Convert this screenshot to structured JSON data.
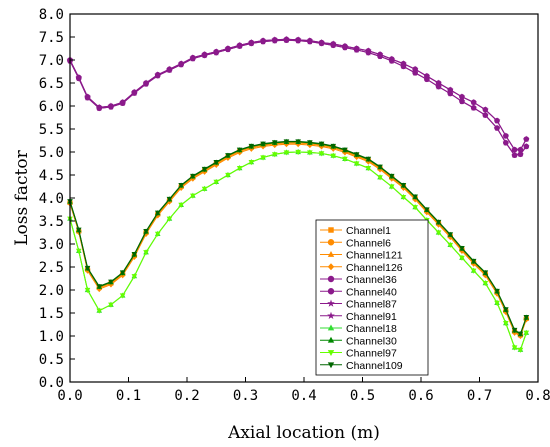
{
  "chart_data": {
    "type": "line",
    "title": "",
    "xlabel": "Axial location (m)",
    "ylabel": "Loss factor",
    "xlim": [
      0.0,
      0.8
    ],
    "ylim": [
      0.0,
      8.0
    ],
    "xticks": [
      "0.0",
      "0.1",
      "0.2",
      "0.3",
      "0.4",
      "0.5",
      "0.6",
      "0.7",
      "0.8"
    ],
    "yticks": [
      "0.0",
      "0.5",
      "1.0",
      "1.5",
      "2.0",
      "2.5",
      "3.0",
      "3.5",
      "4.0",
      "4.5",
      "5.0",
      "5.5",
      "6.0",
      "6.5",
      "7.0",
      "7.5",
      "8.0"
    ],
    "grid": false,
    "legend_position": "right-middle",
    "x": [
      0.0,
      0.015,
      0.03,
      0.05,
      0.07,
      0.09,
      0.11,
      0.13,
      0.15,
      0.17,
      0.19,
      0.21,
      0.23,
      0.25,
      0.27,
      0.29,
      0.31,
      0.33,
      0.35,
      0.37,
      0.39,
      0.41,
      0.43,
      0.45,
      0.47,
      0.49,
      0.51,
      0.53,
      0.55,
      0.57,
      0.59,
      0.61,
      0.63,
      0.65,
      0.67,
      0.69,
      0.71,
      0.73,
      0.745,
      0.76,
      0.77,
      0.78
    ],
    "series": [
      {
        "name": "Channel1",
        "color": "#FF8C00",
        "marker": "square",
        "values": [
          3.9,
          3.28,
          2.45,
          2.05,
          2.15,
          2.35,
          2.75,
          3.25,
          3.65,
          3.95,
          4.25,
          4.45,
          4.6,
          4.75,
          4.9,
          5.02,
          5.1,
          5.15,
          5.18,
          5.2,
          5.2,
          5.18,
          5.15,
          5.1,
          5.02,
          4.92,
          4.82,
          4.65,
          4.45,
          4.25,
          4.0,
          3.72,
          3.45,
          3.18,
          2.88,
          2.6,
          2.35,
          1.95,
          1.55,
          1.1,
          1.02,
          1.38
        ]
      },
      {
        "name": "Channel6",
        "color": "#FF8C00",
        "marker": "circle",
        "values": [
          3.9,
          3.28,
          2.45,
          2.05,
          2.15,
          2.35,
          2.75,
          3.25,
          3.65,
          3.95,
          4.25,
          4.45,
          4.6,
          4.75,
          4.9,
          5.02,
          5.1,
          5.15,
          5.18,
          5.2,
          5.2,
          5.18,
          5.15,
          5.1,
          5.02,
          4.92,
          4.82,
          4.65,
          4.45,
          4.25,
          4.0,
          3.72,
          3.45,
          3.18,
          2.88,
          2.6,
          2.35,
          1.95,
          1.55,
          1.1,
          1.02,
          1.38
        ]
      },
      {
        "name": "Channel121",
        "color": "#FF8C00",
        "marker": "triangle",
        "values": [
          3.9,
          3.28,
          2.45,
          2.05,
          2.15,
          2.35,
          2.75,
          3.25,
          3.65,
          3.95,
          4.25,
          4.45,
          4.6,
          4.75,
          4.9,
          5.02,
          5.1,
          5.15,
          5.18,
          5.2,
          5.2,
          5.18,
          5.15,
          5.1,
          5.02,
          4.92,
          4.82,
          4.65,
          4.45,
          4.25,
          4.0,
          3.72,
          3.45,
          3.18,
          2.88,
          2.6,
          2.35,
          1.95,
          1.55,
          1.1,
          1.02,
          1.38
        ]
      },
      {
        "name": "Channel126",
        "color": "#FF8C00",
        "marker": "diamond",
        "values": [
          3.88,
          3.26,
          2.42,
          2.02,
          2.12,
          2.32,
          2.72,
          3.22,
          3.62,
          3.92,
          4.22,
          4.42,
          4.57,
          4.72,
          4.87,
          4.99,
          5.07,
          5.12,
          5.15,
          5.17,
          5.17,
          5.15,
          5.12,
          5.07,
          4.99,
          4.89,
          4.79,
          4.62,
          4.42,
          4.22,
          3.97,
          3.69,
          3.42,
          3.15,
          2.85,
          2.57,
          2.32,
          1.92,
          1.52,
          1.07,
          1.0,
          1.36
        ]
      },
      {
        "name": "Channel36",
        "color": "#8B1A8B",
        "marker": "circle",
        "values": [
          7.0,
          6.62,
          6.2,
          5.97,
          6.0,
          6.08,
          6.3,
          6.5,
          6.68,
          6.8,
          6.92,
          7.05,
          7.12,
          7.18,
          7.25,
          7.32,
          7.38,
          7.42,
          7.44,
          7.45,
          7.44,
          7.42,
          7.38,
          7.35,
          7.3,
          7.25,
          7.2,
          7.12,
          7.02,
          6.92,
          6.8,
          6.65,
          6.5,
          6.35,
          6.2,
          6.08,
          5.92,
          5.68,
          5.35,
          5.05,
          5.05,
          5.28
        ]
      },
      {
        "name": "Channel40",
        "color": "#8B1A8B",
        "marker": "circle",
        "values": [
          6.98,
          6.6,
          6.18,
          5.95,
          5.98,
          6.06,
          6.28,
          6.48,
          6.66,
          6.78,
          6.9,
          7.03,
          7.1,
          7.16,
          7.23,
          7.3,
          7.36,
          7.4,
          7.42,
          7.43,
          7.42,
          7.4,
          7.36,
          7.32,
          7.27,
          7.22,
          7.16,
          7.08,
          6.98,
          6.86,
          6.72,
          6.58,
          6.42,
          6.27,
          6.1,
          5.96,
          5.8,
          5.52,
          5.2,
          4.93,
          4.95,
          5.12
        ]
      },
      {
        "name": "Channel87",
        "color": "#8B1A8B",
        "marker": "star",
        "values": [
          7.0,
          6.62,
          6.2,
          5.97,
          6.0,
          6.08,
          6.3,
          6.5,
          6.68,
          6.8,
          6.92,
          7.05,
          7.12,
          7.18,
          7.25,
          7.32,
          7.38,
          7.42,
          7.44,
          7.45,
          7.44,
          7.42,
          7.38,
          7.35,
          7.3,
          7.25,
          7.2,
          7.12,
          7.02,
          6.92,
          6.8,
          6.65,
          6.5,
          6.35,
          6.2,
          6.08,
          5.92,
          5.68,
          5.35,
          5.05,
          5.05,
          5.28
        ]
      },
      {
        "name": "Channel91",
        "color": "#8B1A8B",
        "marker": "star",
        "values": [
          6.98,
          6.6,
          6.18,
          5.95,
          5.98,
          6.06,
          6.28,
          6.48,
          6.66,
          6.78,
          6.9,
          7.03,
          7.1,
          7.16,
          7.23,
          7.3,
          7.36,
          7.4,
          7.42,
          7.43,
          7.42,
          7.4,
          7.36,
          7.32,
          7.27,
          7.22,
          7.16,
          7.08,
          6.98,
          6.86,
          6.72,
          6.58,
          6.42,
          6.27,
          6.1,
          5.96,
          5.8,
          5.52,
          5.2,
          4.93,
          4.95,
          5.12
        ]
      },
      {
        "name": "Channel18",
        "color": "#33DD33",
        "marker": "triangle",
        "values": [
          3.55,
          2.85,
          2.0,
          1.55,
          1.68,
          1.88,
          2.3,
          2.82,
          3.22,
          3.55,
          3.85,
          4.05,
          4.2,
          4.35,
          4.5,
          4.65,
          4.78,
          4.88,
          4.95,
          4.99,
          5.0,
          4.99,
          4.97,
          4.92,
          4.85,
          4.75,
          4.65,
          4.45,
          4.25,
          4.02,
          3.8,
          3.52,
          3.25,
          2.98,
          2.7,
          2.42,
          2.15,
          1.72,
          1.28,
          0.75,
          0.7,
          1.07
        ]
      },
      {
        "name": "Channel30",
        "color": "#008800",
        "marker": "triangle",
        "values": [
          3.92,
          3.3,
          2.47,
          2.07,
          2.17,
          2.37,
          2.77,
          3.27,
          3.67,
          3.97,
          4.27,
          4.47,
          4.62,
          4.77,
          4.92,
          5.04,
          5.12,
          5.17,
          5.2,
          5.22,
          5.22,
          5.2,
          5.17,
          5.12,
          5.04,
          4.94,
          4.84,
          4.67,
          4.47,
          4.27,
          4.02,
          3.74,
          3.47,
          3.2,
          2.9,
          2.62,
          2.37,
          1.97,
          1.57,
          1.12,
          1.04,
          1.4
        ]
      },
      {
        "name": "Channel97",
        "color": "#66FF00",
        "marker": "triangle-down",
        "values": [
          3.55,
          2.85,
          2.0,
          1.55,
          1.68,
          1.88,
          2.3,
          2.82,
          3.22,
          3.55,
          3.85,
          4.05,
          4.2,
          4.35,
          4.5,
          4.65,
          4.78,
          4.88,
          4.95,
          4.99,
          5.0,
          4.99,
          4.97,
          4.92,
          4.85,
          4.75,
          4.65,
          4.45,
          4.25,
          4.02,
          3.8,
          3.52,
          3.25,
          2.98,
          2.7,
          2.42,
          2.15,
          1.72,
          1.28,
          0.75,
          0.7,
          1.07
        ]
      },
      {
        "name": "Channel109",
        "color": "#006600",
        "marker": "triangle-down",
        "values": [
          3.93,
          3.31,
          2.48,
          2.08,
          2.18,
          2.38,
          2.78,
          3.28,
          3.68,
          3.98,
          4.28,
          4.48,
          4.63,
          4.78,
          4.93,
          5.05,
          5.13,
          5.18,
          5.21,
          5.23,
          5.23,
          5.21,
          5.18,
          5.13,
          5.05,
          4.95,
          4.85,
          4.68,
          4.48,
          4.28,
          4.03,
          3.75,
          3.48,
          3.21,
          2.91,
          2.63,
          2.38,
          1.98,
          1.58,
          1.13,
          1.05,
          1.41
        ]
      }
    ]
  }
}
